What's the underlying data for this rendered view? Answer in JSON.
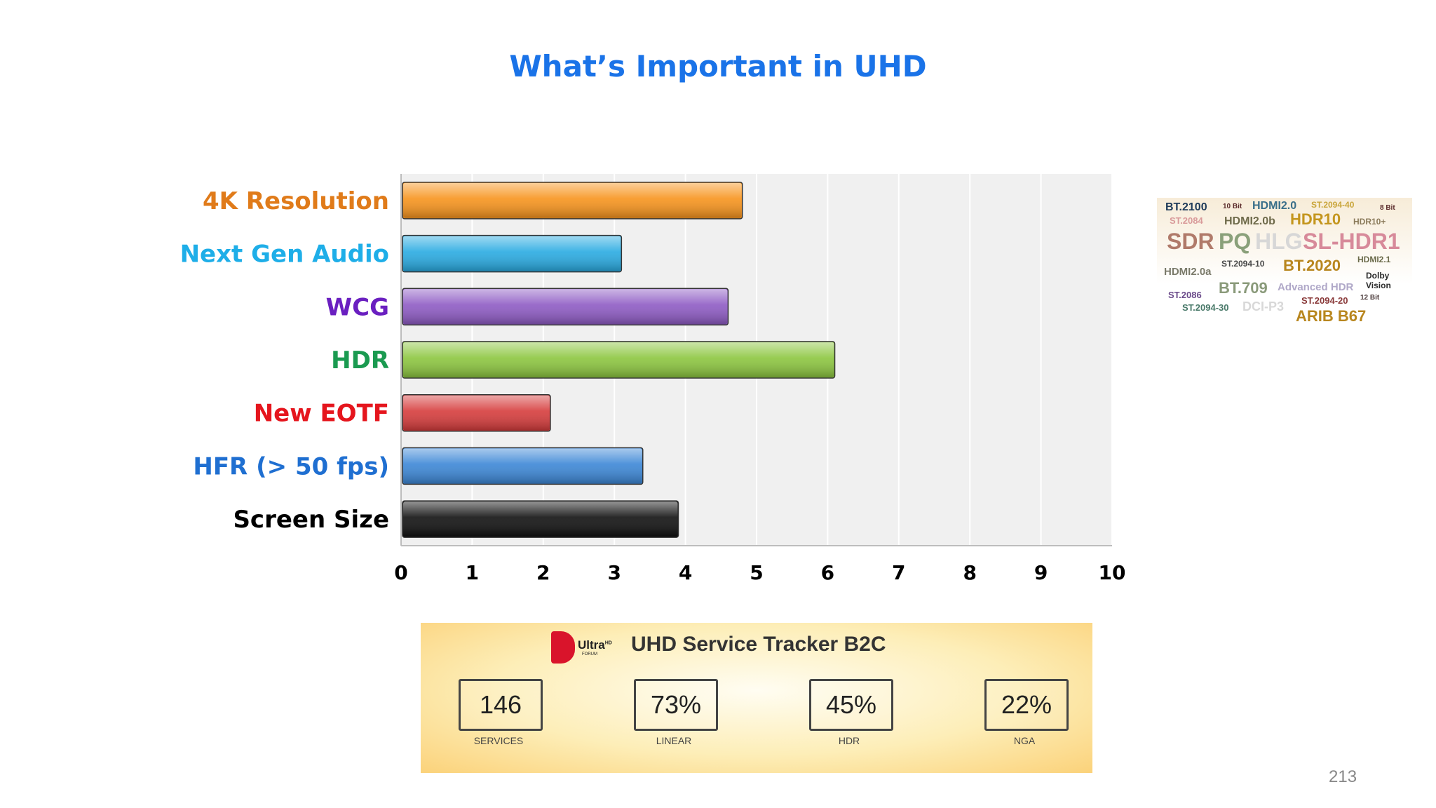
{
  "slide": {
    "title": "What’s Important in UHD",
    "page_number": "213"
  },
  "chart_data": {
    "type": "bar",
    "orientation": "horizontal",
    "title": "",
    "xlabel": "",
    "ylabel": "",
    "xlim": [
      0,
      10
    ],
    "x_ticks": [
      "0",
      "1",
      "2",
      "3",
      "4",
      "5",
      "6",
      "7",
      "8",
      "9",
      "10"
    ],
    "grid": true,
    "categories": [
      "4K Resolution",
      "Next Gen Audio",
      "WCG",
      "HDR",
      "New EOTF",
      "HFR (> 50 fps)",
      "Screen Size"
    ],
    "values": [
      4.8,
      3.1,
      4.6,
      6.1,
      2.1,
      3.4,
      3.9
    ],
    "bar_colors": [
      "#f7941d",
      "#29abe2",
      "#8e5bc4",
      "#8cc63f",
      "#d63c3c",
      "#3c87d6",
      "#111111"
    ],
    "label_colors": [
      "#e07b1a",
      "#1eaee8",
      "#6a1fc0",
      "#1a9a50",
      "#e5151d",
      "#1f6fd1",
      "#000000"
    ]
  },
  "tag_cloud": {
    "tags": [
      {
        "text": "BT.2100",
        "color": "#1f3b5a"
      },
      {
        "text": "10 Bit",
        "color": "#5a2a2a"
      },
      {
        "text": "HDMI2.0",
        "color": "#3a6f8a"
      },
      {
        "text": "ST.2094-40",
        "color": "#c9a53a"
      },
      {
        "text": "8 Bit",
        "color": "#5a2a2a"
      },
      {
        "text": "ST.2084",
        "color": "#d99a9a"
      },
      {
        "text": "HDMI2.0b",
        "color": "#6e6a4a"
      },
      {
        "text": "HDR10",
        "color": "#c4961e"
      },
      {
        "text": "HDR10+",
        "color": "#8a7a5a"
      },
      {
        "text": "SDR",
        "color": "#b07a6a"
      },
      {
        "text": "PQ",
        "color": "#8aa07a"
      },
      {
        "text": "HLG",
        "color": "#d7d7d7"
      },
      {
        "text": "SL-HDR1",
        "color": "#d78a9a"
      },
      {
        "text": "HDMI2.0a",
        "color": "#7a7a6a"
      },
      {
        "text": "ST.2094-10",
        "color": "#4a4a4a"
      },
      {
        "text": "BT.2020",
        "color": "#b8861e"
      },
      {
        "text": "HDMI2.1",
        "color": "#6a6a4a"
      },
      {
        "text": "ST.2086",
        "color": "#6a4a8a"
      },
      {
        "text": "BT.709",
        "color": "#8a9a7a"
      },
      {
        "text": "Advanced HDR",
        "color": "#b0a8c8"
      },
      {
        "text": "Dolby Vision",
        "color": "#2a2a2a"
      },
      {
        "text": "ST.2094-30",
        "color": "#4a7a6a"
      },
      {
        "text": "DCI-P3",
        "color": "#d8d8d8"
      },
      {
        "text": "ST.2094-20",
        "color": "#8a3a3a"
      },
      {
        "text": "12 Bit",
        "color": "#4a3a3a"
      },
      {
        "text": "ARIB B67",
        "color": "#b8861e"
      }
    ]
  },
  "tracker": {
    "logo_text": "Ultra",
    "logo_superscript": "HD",
    "logo_sub": "FORUM",
    "title": "UHD Service Tracker B2C",
    "stats": [
      {
        "value": "146",
        "label": "SERVICES"
      },
      {
        "value": "73%",
        "label": "LINEAR"
      },
      {
        "value": "45%",
        "label": "HDR"
      },
      {
        "value": "22%",
        "label": "NGA"
      }
    ]
  }
}
